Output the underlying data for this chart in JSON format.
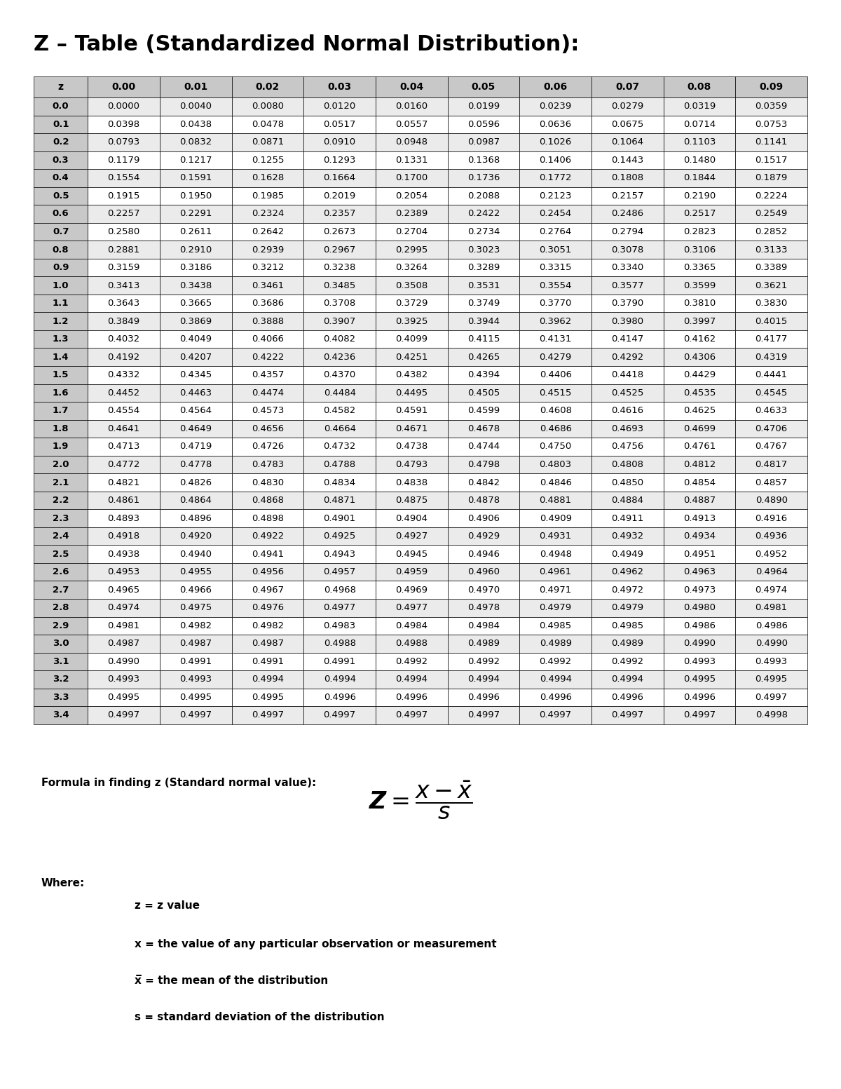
{
  "title": "Z – Table (Standardized Normal Distribution):",
  "title_fontsize": 22,
  "title_fontweight": "bold",
  "col_headers": [
    "z",
    "0.00",
    "0.01",
    "0.02",
    "0.03",
    "0.04",
    "0.05",
    "0.06",
    "0.07",
    "0.08",
    "0.09"
  ],
  "z_values": [
    "0.0",
    "0.1",
    "0.2",
    "0.3",
    "0.4",
    "0.5",
    "0.6",
    "0.7",
    "0.8",
    "0.9",
    "1.0",
    "1.1",
    "1.2",
    "1.3",
    "1.4",
    "1.5",
    "1.6",
    "1.7",
    "1.8",
    "1.9",
    "2.0",
    "2.1",
    "2.2",
    "2.3",
    "2.4",
    "2.5",
    "2.6",
    "2.7",
    "2.8",
    "2.9",
    "3.0",
    "3.1",
    "3.2",
    "3.3",
    "3.4"
  ],
  "table_data": [
    [
      "0.0000",
      "0.0040",
      "0.0080",
      "0.0120",
      "0.0160",
      "0.0199",
      "0.0239",
      "0.0279",
      "0.0319",
      "0.0359"
    ],
    [
      "0.0398",
      "0.0438",
      "0.0478",
      "0.0517",
      "0.0557",
      "0.0596",
      "0.0636",
      "0.0675",
      "0.0714",
      "0.0753"
    ],
    [
      "0.0793",
      "0.0832",
      "0.0871",
      "0.0910",
      "0.0948",
      "0.0987",
      "0.1026",
      "0.1064",
      "0.1103",
      "0.1141"
    ],
    [
      "0.1179",
      "0.1217",
      "0.1255",
      "0.1293",
      "0.1331",
      "0.1368",
      "0.1406",
      "0.1443",
      "0.1480",
      "0.1517"
    ],
    [
      "0.1554",
      "0.1591",
      "0.1628",
      "0.1664",
      "0.1700",
      "0.1736",
      "0.1772",
      "0.1808",
      "0.1844",
      "0.1879"
    ],
    [
      "0.1915",
      "0.1950",
      "0.1985",
      "0.2019",
      "0.2054",
      "0.2088",
      "0.2123",
      "0.2157",
      "0.2190",
      "0.2224"
    ],
    [
      "0.2257",
      "0.2291",
      "0.2324",
      "0.2357",
      "0.2389",
      "0.2422",
      "0.2454",
      "0.2486",
      "0.2517",
      "0.2549"
    ],
    [
      "0.2580",
      "0.2611",
      "0.2642",
      "0.2673",
      "0.2704",
      "0.2734",
      "0.2764",
      "0.2794",
      "0.2823",
      "0.2852"
    ],
    [
      "0.2881",
      "0.2910",
      "0.2939",
      "0.2967",
      "0.2995",
      "0.3023",
      "0.3051",
      "0.3078",
      "0.3106",
      "0.3133"
    ],
    [
      "0.3159",
      "0.3186",
      "0.3212",
      "0.3238",
      "0.3264",
      "0.3289",
      "0.3315",
      "0.3340",
      "0.3365",
      "0.3389"
    ],
    [
      "0.3413",
      "0.3438",
      "0.3461",
      "0.3485",
      "0.3508",
      "0.3531",
      "0.3554",
      "0.3577",
      "0.3599",
      "0.3621"
    ],
    [
      "0.3643",
      "0.3665",
      "0.3686",
      "0.3708",
      "0.3729",
      "0.3749",
      "0.3770",
      "0.3790",
      "0.3810",
      "0.3830"
    ],
    [
      "0.3849",
      "0.3869",
      "0.3888",
      "0.3907",
      "0.3925",
      "0.3944",
      "0.3962",
      "0.3980",
      "0.3997",
      "0.4015"
    ],
    [
      "0.4032",
      "0.4049",
      "0.4066",
      "0.4082",
      "0.4099",
      "0.4115",
      "0.4131",
      "0.4147",
      "0.4162",
      "0.4177"
    ],
    [
      "0.4192",
      "0.4207",
      "0.4222",
      "0.4236",
      "0.4251",
      "0.4265",
      "0.4279",
      "0.4292",
      "0.4306",
      "0.4319"
    ],
    [
      "0.4332",
      "0.4345",
      "0.4357",
      "0.4370",
      "0.4382",
      "0.4394",
      "0.4406",
      "0.4418",
      "0.4429",
      "0.4441"
    ],
    [
      "0.4452",
      "0.4463",
      "0.4474",
      "0.4484",
      "0.4495",
      "0.4505",
      "0.4515",
      "0.4525",
      "0.4535",
      "0.4545"
    ],
    [
      "0.4554",
      "0.4564",
      "0.4573",
      "0.4582",
      "0.4591",
      "0.4599",
      "0.4608",
      "0.4616",
      "0.4625",
      "0.4633"
    ],
    [
      "0.4641",
      "0.4649",
      "0.4656",
      "0.4664",
      "0.4671",
      "0.4678",
      "0.4686",
      "0.4693",
      "0.4699",
      "0.4706"
    ],
    [
      "0.4713",
      "0.4719",
      "0.4726",
      "0.4732",
      "0.4738",
      "0.4744",
      "0.4750",
      "0.4756",
      "0.4761",
      "0.4767"
    ],
    [
      "0.4772",
      "0.4778",
      "0.4783",
      "0.4788",
      "0.4793",
      "0.4798",
      "0.4803",
      "0.4808",
      "0.4812",
      "0.4817"
    ],
    [
      "0.4821",
      "0.4826",
      "0.4830",
      "0.4834",
      "0.4838",
      "0.4842",
      "0.4846",
      "0.4850",
      "0.4854",
      "0.4857"
    ],
    [
      "0.4861",
      "0.4864",
      "0.4868",
      "0.4871",
      "0.4875",
      "0.4878",
      "0.4881",
      "0.4884",
      "0.4887",
      "0.4890"
    ],
    [
      "0.4893",
      "0.4896",
      "0.4898",
      "0.4901",
      "0.4904",
      "0.4906",
      "0.4909",
      "0.4911",
      "0.4913",
      "0.4916"
    ],
    [
      "0.4918",
      "0.4920",
      "0.4922",
      "0.4925",
      "0.4927",
      "0.4929",
      "0.4931",
      "0.4932",
      "0.4934",
      "0.4936"
    ],
    [
      "0.4938",
      "0.4940",
      "0.4941",
      "0.4943",
      "0.4945",
      "0.4946",
      "0.4948",
      "0.4949",
      "0.4951",
      "0.4952"
    ],
    [
      "0.4953",
      "0.4955",
      "0.4956",
      "0.4957",
      "0.4959",
      "0.4960",
      "0.4961",
      "0.4962",
      "0.4963",
      "0.4964"
    ],
    [
      "0.4965",
      "0.4966",
      "0.4967",
      "0.4968",
      "0.4969",
      "0.4970",
      "0.4971",
      "0.4972",
      "0.4973",
      "0.4974"
    ],
    [
      "0.4974",
      "0.4975",
      "0.4976",
      "0.4977",
      "0.4977",
      "0.4978",
      "0.4979",
      "0.4979",
      "0.4980",
      "0.4981"
    ],
    [
      "0.4981",
      "0.4982",
      "0.4982",
      "0.4983",
      "0.4984",
      "0.4984",
      "0.4985",
      "0.4985",
      "0.4986",
      "0.4986"
    ],
    [
      "0.4987",
      "0.4987",
      "0.4987",
      "0.4988",
      "0.4988",
      "0.4989",
      "0.4989",
      "0.4989",
      "0.4990",
      "0.4990"
    ],
    [
      "0.4990",
      "0.4991",
      "0.4991",
      "0.4991",
      "0.4992",
      "0.4992",
      "0.4992",
      "0.4992",
      "0.4993",
      "0.4993"
    ],
    [
      "0.4993",
      "0.4993",
      "0.4994",
      "0.4994",
      "0.4994",
      "0.4994",
      "0.4994",
      "0.4994",
      "0.4995",
      "0.4995"
    ],
    [
      "0.4995",
      "0.4995",
      "0.4995",
      "0.4996",
      "0.4996",
      "0.4996",
      "0.4996",
      "0.4996",
      "0.4996",
      "0.4997"
    ],
    [
      "0.4997",
      "0.4997",
      "0.4997",
      "0.4997",
      "0.4997",
      "0.4997",
      "0.4997",
      "0.4997",
      "0.4997",
      "0.4998"
    ]
  ],
  "formula_label": "Formula in finding z (Standard normal value):",
  "formula_label_fontsize": 11,
  "where_label": "Where:",
  "where_items": [
    "z = z value",
    "x = the value of any particular observation or measurement",
    "x̅ = the mean of the distribution",
    "s = standard deviation of the distribution"
  ],
  "where_fontsize": 11,
  "header_bg": "#c8c8c8",
  "row_bg_even": "#ebebeb",
  "row_bg_odd": "#ffffff",
  "text_color": "#000000",
  "border_color": "#000000",
  "background_color": "#ffffff"
}
